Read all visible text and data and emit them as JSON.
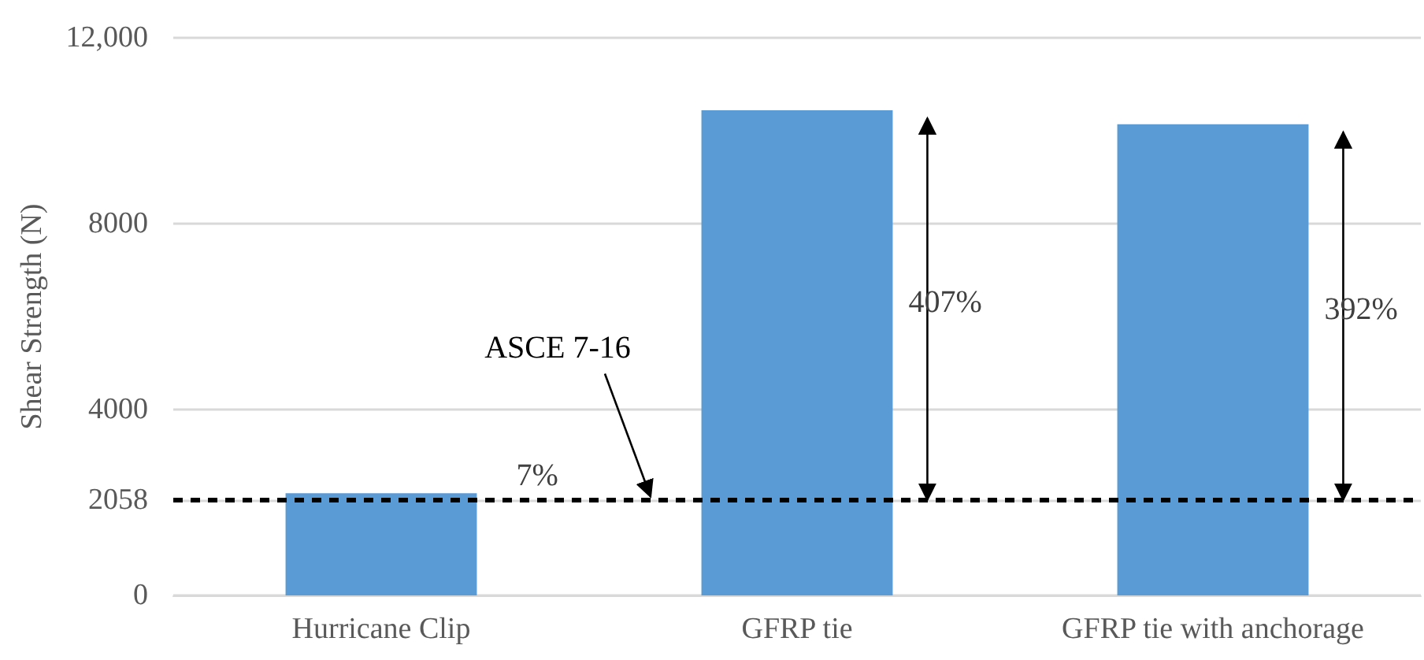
{
  "chart_data": {
    "type": "bar",
    "ylabel": "Shear Strength (N)",
    "categories": [
      "Hurricane Clip",
      "GFRP tie",
      "GFRP tie with anchorage"
    ],
    "values": [
      2200,
      10440,
      10140
    ],
    "color": "#5b9bd5",
    "ylim": [
      0,
      12000
    ],
    "yticks": [
      0,
      2058,
      4000,
      8000,
      {
        "value": 12000,
        "label": "12,000"
      }
    ],
    "grid": "y",
    "ref_lines": [
      {
        "axis": "y",
        "value": 2058,
        "label": "ASCE 7-16",
        "color": "#000000",
        "line_style": "dashed"
      }
    ],
    "annotations": [
      "7%",
      "407%",
      "392%"
    ]
  }
}
